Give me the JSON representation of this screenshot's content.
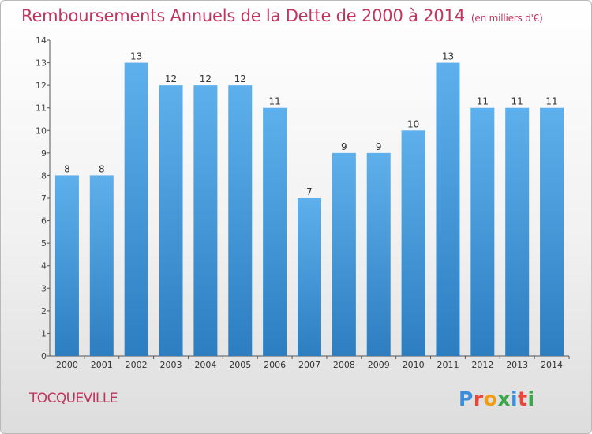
{
  "header": {
    "title": "Remboursements Annuels de la Dette de 2000 à 2014",
    "subtitle": "(en milliers d'€)"
  },
  "footer": {
    "commune": "TOCQUEVILLE",
    "logo_text": "Proxiti",
    "logo_colors": [
      "#3b8ede",
      "#e8463a",
      "#f39c12",
      "#3aa64a",
      "#3b8ede",
      "#e8463a",
      "#3aa64a"
    ]
  },
  "colors": {
    "bar_top": "#5eb0ec",
    "bar_bottom": "#2d7ec1",
    "accent": "#c2335e",
    "axis": "#555555"
  },
  "chart_data": {
    "type": "bar",
    "title": "Remboursements Annuels de la Dette de 2000 à 2014",
    "subtitle": "(en milliers d'€)",
    "categories": [
      "2000",
      "2001",
      "2002",
      "2003",
      "2004",
      "2005",
      "2006",
      "2007",
      "2008",
      "2009",
      "2010",
      "2011",
      "2012",
      "2013",
      "2014"
    ],
    "values": [
      8,
      8,
      13,
      12,
      12,
      12,
      11,
      7,
      9,
      9,
      10,
      13,
      11,
      11,
      11
    ],
    "data_labels": [
      "8",
      "8",
      "13",
      "12",
      "12",
      "12",
      "11",
      "7",
      "9",
      "9",
      "10",
      "13",
      "11",
      "11",
      "11"
    ],
    "ylim": [
      0,
      14
    ],
    "yticks": [
      0,
      1,
      2,
      3,
      4,
      5,
      6,
      7,
      8,
      9,
      10,
      11,
      12,
      13,
      14
    ],
    "grid": false,
    "legend": "none",
    "xlabel": "",
    "ylabel": ""
  }
}
